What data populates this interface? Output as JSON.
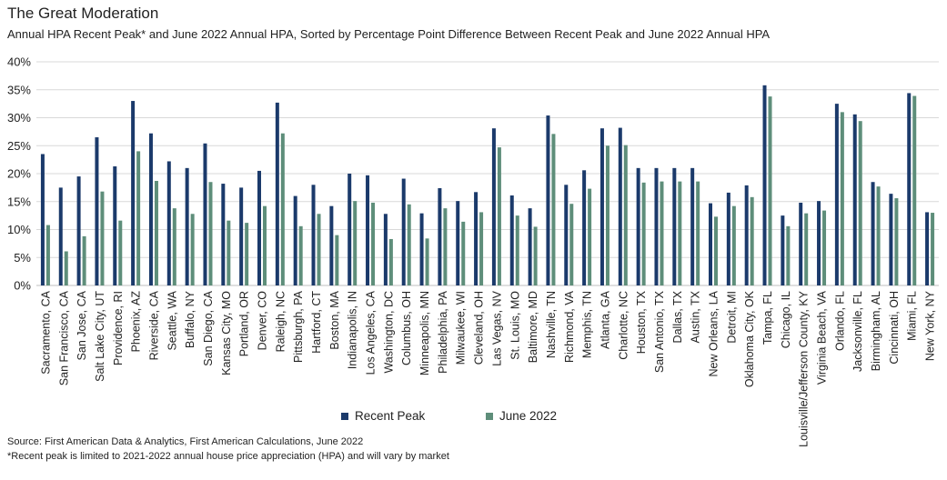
{
  "header": {
    "title": "The Great Moderation",
    "subtitle": "Annual HPA Recent Peak* and June 2022 Annual HPA, Sorted by Percentage Point Difference Between Recent Peak and June 2022 Annual HPA"
  },
  "footnotes": {
    "source": "Source: First American Data & Analytics, First American Calculations, June 2022",
    "note": "*Recent peak is limited to 2021-2022 annual house price appreciation (HPA) and will vary by market"
  },
  "colors": {
    "recent_peak": "#1b3a6b",
    "june_2022": "#5e8e7a",
    "gridline": "#d9d9d9",
    "axis": "#bfbfbf"
  },
  "chart_data": {
    "type": "bar",
    "title": "The Great Moderation",
    "subtitle": "Annual HPA Recent Peak* and June 2022 Annual HPA, Sorted by Percentage Point Difference Between Recent Peak and June 2022 Annual HPA",
    "xlabel": "",
    "ylabel": "",
    "ylim": [
      0,
      40
    ],
    "yticks": [
      "0%",
      "5%",
      "10%",
      "15%",
      "20%",
      "25%",
      "30%",
      "35%",
      "40%"
    ],
    "grid": true,
    "legend": "bottom-center",
    "categories": [
      "Sacramento, CA",
      "San Francisco, CA",
      "San Jose, CA",
      "Salt Lake City, UT",
      "Providence, RI",
      "Phoenix, AZ",
      "Riverside, CA",
      "Seattle, WA",
      "Buffalo, NY",
      "San Diego, CA",
      "Kansas City, MO",
      "Portland, OR",
      "Denver, CO",
      "Raleigh, NC",
      "Pittsburgh, PA",
      "Hartford, CT",
      "Boston, MA",
      "Indianapolis, IN",
      "Los Angeles, CA",
      "Washington, DC",
      "Columbus, OH",
      "Minneapolis, MN",
      "Philadelphia, PA",
      "Milwaukee, WI",
      "Cleveland, OH",
      "Las Vegas, NV",
      "St. Louis, MO",
      "Baltimore, MD",
      "Nashville, TN",
      "Richmond, VA",
      "Memphis, TN",
      "Atlanta, GA",
      "Charlotte, NC",
      "Houston, TX",
      "San Antonio, TX",
      "Dallas, TX",
      "Austin, TX",
      "New Orleans, LA",
      "Detroit, MI",
      "Oklahoma City, OK",
      "Tampa, FL",
      "Chicago, IL",
      "Louisville/Jefferson County, KY",
      "Virginia Beach, VA",
      "Orlando, FL",
      "Jacksonville, FL",
      "Birmingham, AL",
      "Cincinnati, OH",
      "Miami, FL",
      "New York, NY"
    ],
    "series": [
      {
        "name": "Recent Peak",
        "values": [
          23.5,
          17.5,
          19.5,
          26.5,
          21.3,
          33.0,
          27.2,
          22.2,
          21.0,
          25.4,
          18.2,
          17.5,
          20.5,
          32.7,
          16.0,
          18.0,
          14.2,
          20.0,
          19.7,
          12.8,
          19.1,
          12.9,
          17.4,
          15.1,
          16.7,
          28.1,
          16.1,
          13.8,
          30.4,
          18.0,
          20.6,
          28.1,
          28.2,
          21.0,
          21.0,
          21.0,
          21.0,
          14.7,
          16.6,
          17.9,
          35.8,
          12.5,
          14.8,
          15.1,
          32.5,
          30.6,
          18.5,
          16.4,
          34.4,
          13.1
        ]
      },
      {
        "name": "June 2022",
        "values": [
          10.8,
          6.1,
          8.8,
          16.8,
          11.6,
          24.0,
          18.7,
          13.8,
          12.8,
          18.5,
          11.6,
          11.2,
          14.2,
          27.2,
          10.6,
          12.8,
          9.0,
          15.1,
          14.8,
          8.3,
          14.5,
          8.4,
          13.8,
          11.4,
          13.1,
          24.7,
          12.5,
          10.5,
          27.1,
          14.6,
          17.3,
          25.0,
          25.1,
          18.4,
          18.6,
          18.6,
          18.6,
          12.3,
          14.2,
          15.8,
          33.8,
          10.6,
          12.9,
          13.4,
          31.0,
          29.4,
          17.7,
          15.6,
          33.9,
          13.0
        ]
      }
    ]
  }
}
